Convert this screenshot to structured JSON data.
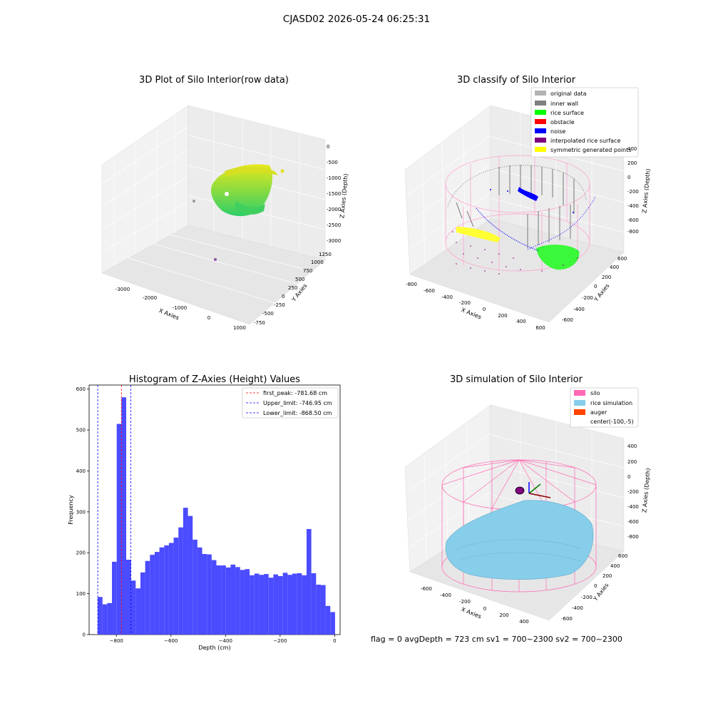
{
  "suptitle": "CJASD02 2026-05-24 06:25:31",
  "footer": "flag = 0     avgDepth = 723 cm  sv1 = 700~2300  sv2 = 700~2300",
  "colors": {
    "histogram": "#4b4bff",
    "first_peak": "#ff0000",
    "limits": "#0000ff",
    "original_data": "#b3b3b3",
    "inner_wall": "#808080",
    "rice_surface": "#00ff00",
    "obstacle": "#ff0000",
    "noise": "#0000ff",
    "interpolated": "#800080",
    "symmetric": "#ffff00",
    "silo": "#ff69b4",
    "rice_sim": "#87ceeb",
    "auger": "#ff4500"
  },
  "plot1": {
    "title": "3D Plot of Silo Interior(row data)",
    "xlabel": "X Axies",
    "ylabel": "Y Axies",
    "zlabel": "Z Axies (Depth)",
    "xticks": [
      "-3000",
      "-2000",
      "-1000",
      "0",
      "1000"
    ],
    "yticks": [
      "-750",
      "-500",
      "-250",
      "0",
      "250",
      "500",
      "750",
      "1000",
      "1250"
    ],
    "zticks": [
      "0",
      "-500",
      "-1000",
      "-1500",
      "-2000",
      "-2500",
      "-3000"
    ]
  },
  "plot2": {
    "title": "3D classify of Silo Interior",
    "xlabel": "X Axies",
    "ylabel": "Y Axies",
    "zlabel": "Z Axies (Depth)",
    "xticks": [
      "-800",
      "-600",
      "-400",
      "-200",
      "0",
      "200",
      "400",
      "600"
    ],
    "yticks": [
      "-600",
      "-400",
      "-200",
      "0",
      "200",
      "400",
      "600"
    ],
    "zticks": [
      "400",
      "200",
      "0",
      "-200",
      "-400",
      "-600",
      "-800"
    ],
    "legend": [
      {
        "label": "original data",
        "color": "#b3b3b3"
      },
      {
        "label": "inner wall",
        "color": "#808080"
      },
      {
        "label": "rice surface",
        "color": "#00ff00"
      },
      {
        "label": "obstacle",
        "color": "#ff0000"
      },
      {
        "label": "noise",
        "color": "#0000ff"
      },
      {
        "label": "interpolated rice surface",
        "color": "#800080"
      },
      {
        "label": "symmetric generated points",
        "color": "#ffff00"
      }
    ]
  },
  "plot4": {
    "title": "3D simulation of Silo Interior",
    "xlabel": "X Axies",
    "ylabel": "Y Axies",
    "zlabel": "Z Axies (Depth)",
    "xticks": [
      "-600",
      "-400",
      "-200",
      "0",
      "200",
      "400"
    ],
    "yticks": [
      "-600",
      "-400",
      "-200",
      "0",
      "200",
      "400",
      "600"
    ],
    "zticks": [
      "400",
      "200",
      "0",
      "-200",
      "-400",
      "-600",
      "-800"
    ],
    "legend": [
      {
        "label": "silo",
        "color": "#ff69b4"
      },
      {
        "label": "rice simulation",
        "color": "#87ceeb"
      },
      {
        "label": "auger",
        "color": "#ff4500"
      },
      {
        "label": "center(-100,-5)",
        "color": ""
      }
    ]
  },
  "chart_data": [
    {
      "type": "scatter",
      "title": "3D Plot of Silo Interior(row data)",
      "xlabel": "X Axies",
      "ylabel": "Y Axies",
      "zlabel": "Z Axies (Depth)",
      "xlim": [
        -3500,
        1000
      ],
      "ylim": [
        -800,
        1300
      ],
      "zlim": [
        -3100,
        100
      ],
      "points": [
        {
          "x": -3100,
          "y": 1300,
          "z": -1400
        },
        {
          "x": -1900,
          "y": 100,
          "z": -2900
        }
      ]
    },
    {
      "type": "scatter",
      "title": "3D classify of Silo Interior",
      "xlabel": "X Axies",
      "ylabel": "Y Axies",
      "zlabel": "Z Axies (Depth)",
      "xlim": [
        -800,
        600
      ],
      "ylim": [
        -650,
        650
      ],
      "zlim": [
        -900,
        400
      ],
      "series": [
        {
          "name": "original data"
        },
        {
          "name": "inner wall"
        },
        {
          "name": "rice surface"
        },
        {
          "name": "obstacle"
        },
        {
          "name": "noise"
        },
        {
          "name": "interpolated rice surface"
        },
        {
          "name": "symmetric generated points"
        }
      ]
    },
    {
      "type": "bar",
      "title": "Histogram of Z-Axies (Height) Values",
      "xlabel": "Depth (cm)",
      "ylabel": "Frequency",
      "xlim": [
        -900,
        20
      ],
      "ylim": [
        0,
        610
      ],
      "xticks": [
        -800,
        -600,
        -400,
        -200,
        0
      ],
      "yticks": [
        0,
        100,
        200,
        300,
        400,
        500,
        600
      ],
      "bin_start": -868.5,
      "bin_width": 17.4,
      "values": [
        92,
        74,
        77,
        178,
        515,
        580,
        183,
        132,
        113,
        152,
        180,
        195,
        202,
        213,
        218,
        224,
        237,
        262,
        310,
        290,
        232,
        213,
        197,
        196,
        182,
        169,
        169,
        164,
        171,
        165,
        158,
        160,
        145,
        149,
        146,
        148,
        139,
        147,
        143,
        151,
        146,
        149,
        150,
        145,
        258,
        150,
        122,
        121,
        70,
        55
      ],
      "vlines": [
        {
          "label": "first_peak: -781.68 cm",
          "x": -781.68,
          "color": "#ff0000"
        },
        {
          "label": "Upper_limit: -746.95 cm",
          "x": -746.95,
          "color": "#0000ff"
        },
        {
          "label": "Lower_limit: -868.50 cm",
          "x": -868.5,
          "color": "#0000ff"
        }
      ]
    },
    {
      "type": "scatter",
      "title": "3D simulation of Silo Interior",
      "xlabel": "X Axies",
      "ylabel": "Y Axies",
      "zlabel": "Z Axies (Depth)",
      "xlim": [
        -700,
        500
      ],
      "ylim": [
        -650,
        650
      ],
      "zlim": [
        -900,
        450
      ],
      "series": [
        {
          "name": "silo"
        },
        {
          "name": "rice simulation"
        },
        {
          "name": "auger"
        },
        {
          "name": "center(-100,-5)"
        }
      ]
    }
  ]
}
